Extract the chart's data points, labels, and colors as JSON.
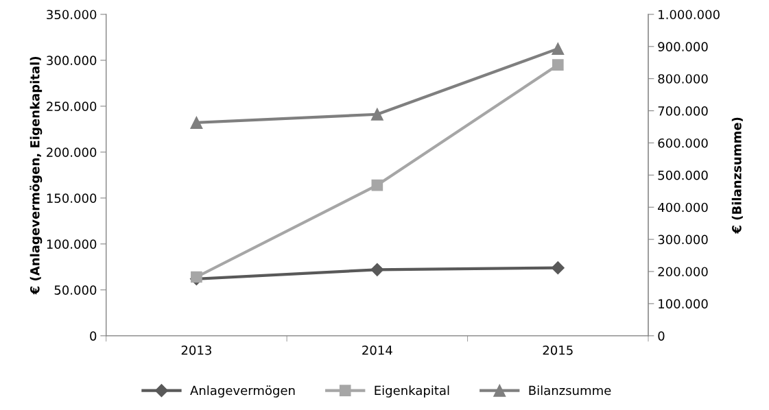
{
  "chart_data": {
    "type": "line",
    "categories": [
      "2013",
      "2014",
      "2015"
    ],
    "ylabel": "€ (Anlagevermögen, Eigenkapital)",
    "y2label": "€ (Bilanzsumme)",
    "series": [
      {
        "name": "Anlagevermögen",
        "color": "#595959",
        "marker": "diamond",
        "values": [
          62000,
          72000,
          74000
        ]
      },
      {
        "name": "Eigenkapital",
        "color": "#a6a6a6",
        "marker": "square",
        "values": [
          64000,
          164000,
          295000
        ]
      },
      {
        "name": "Bilanzsumme",
        "color": "#7f7f7f",
        "marker": "triangle",
        "axis": "y2",
        "values": [
          663000,
          689000,
          893000
        ]
      }
    ],
    "ylim": [
      0,
      350000
    ],
    "yticks": [
      0,
      {
        "value": 50000,
        "label": "50.000"
      },
      {
        "value": 100000,
        "label": "100.000"
      },
      {
        "value": 150000,
        "label": "150.000"
      },
      {
        "value": 200000,
        "label": "200.000"
      },
      {
        "value": 250000,
        "label": "250.000"
      },
      {
        "value": 300000,
        "label": "300.000"
      },
      {
        "value": 350000,
        "label": "350.000"
      }
    ],
    "y2lim": [
      0,
      1000000
    ],
    "y2ticks": [
      0,
      {
        "value": 100000,
        "label": "100.000"
      },
      {
        "value": 200000,
        "label": "200.000"
      },
      {
        "value": 300000,
        "label": "300.000"
      },
      {
        "value": 400000,
        "label": "400.000"
      },
      {
        "value": 500000,
        "label": "500.000"
      },
      {
        "value": 600000,
        "label": "600.000"
      },
      {
        "value": 700000,
        "label": "700.000"
      },
      {
        "value": 800000,
        "label": "800.000"
      },
      {
        "value": 900000,
        "label": "900.000"
      },
      {
        "value": 1000000,
        "label": "1.000.000"
      }
    ],
    "grid": false,
    "legend": "bottom"
  }
}
